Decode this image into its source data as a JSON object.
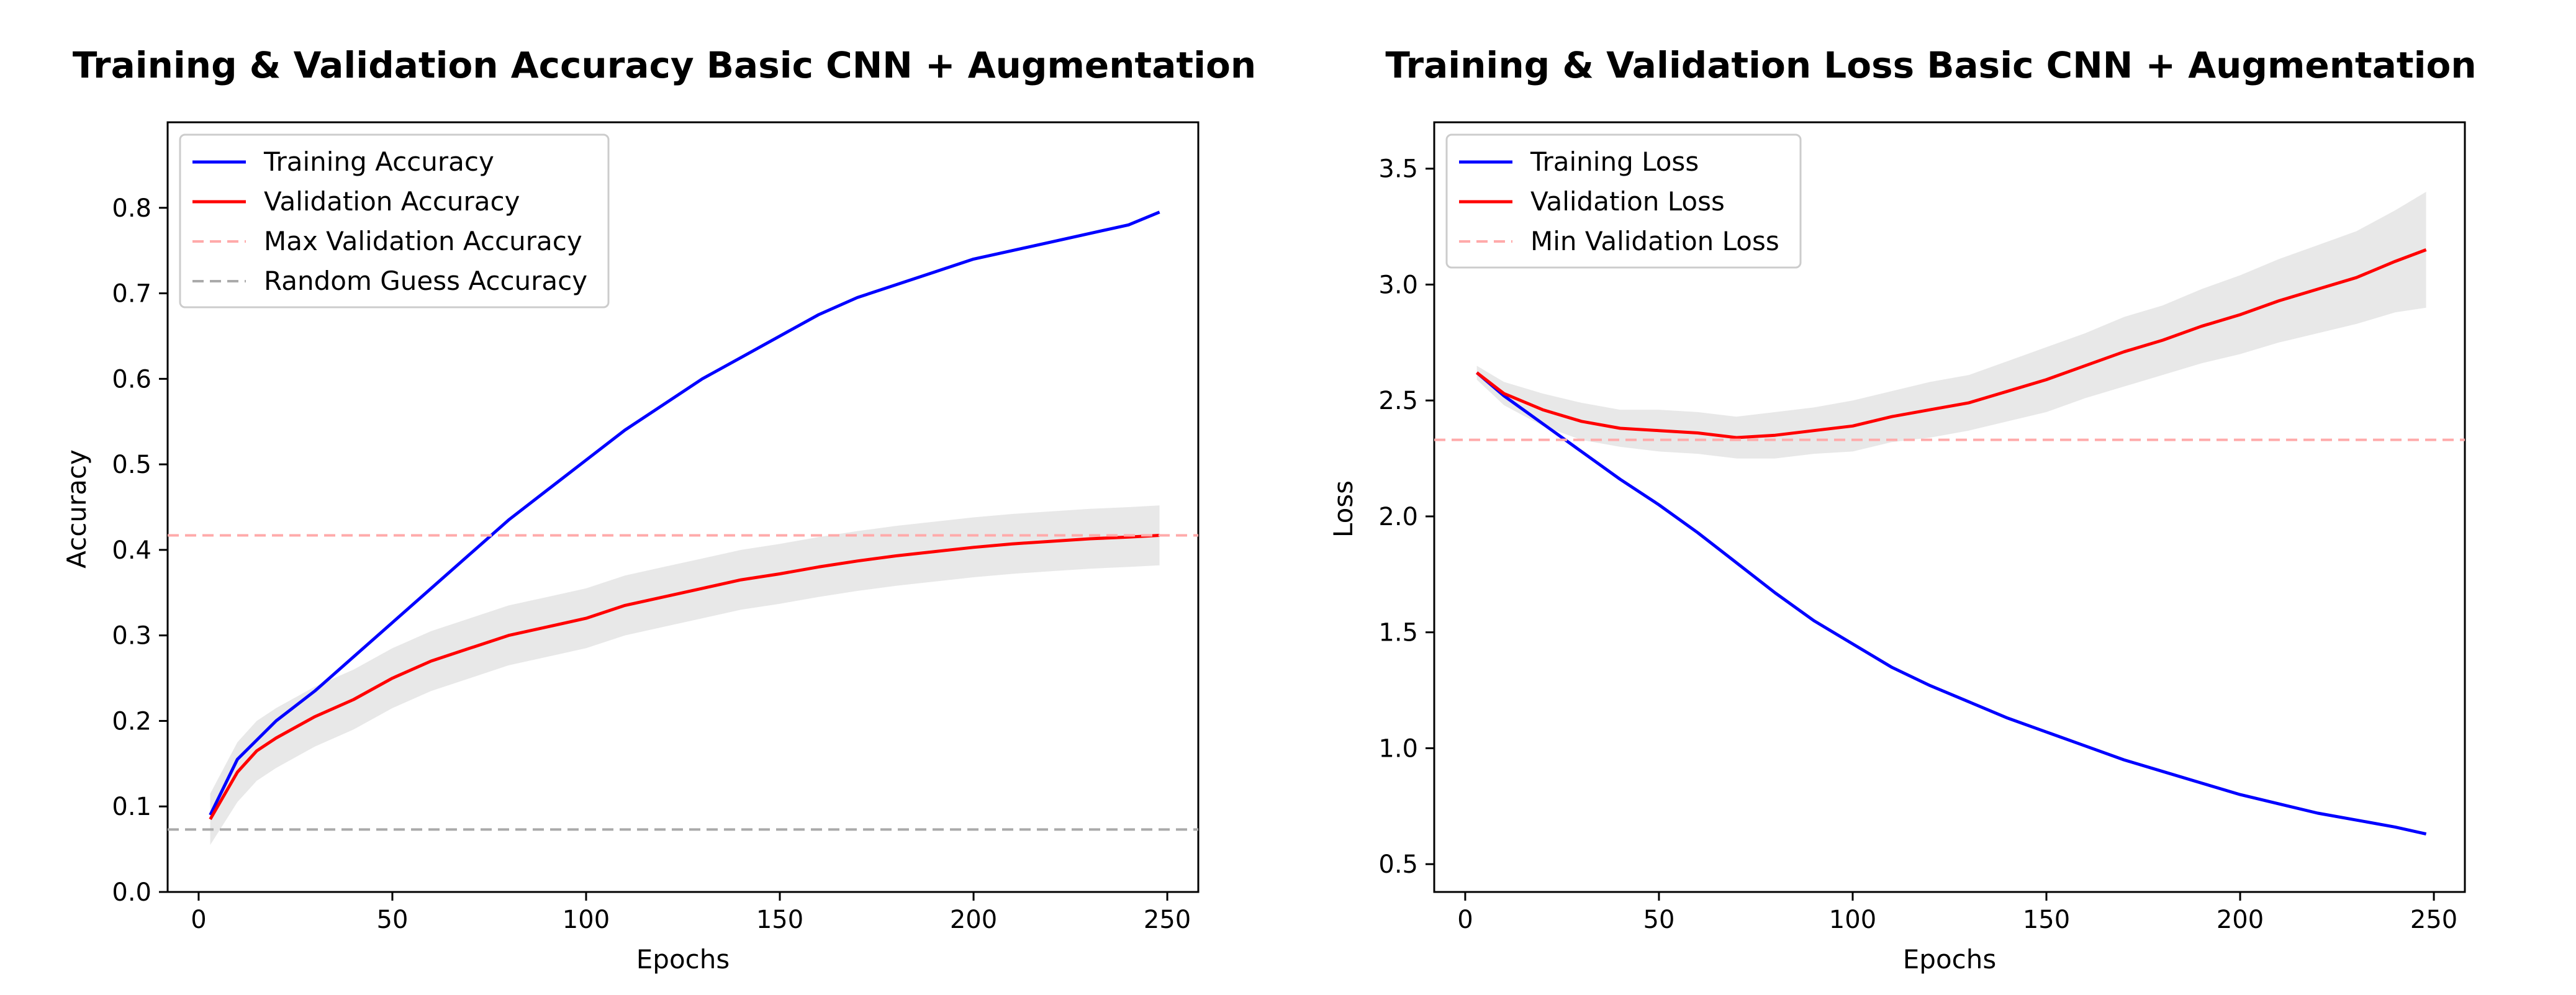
{
  "chart_data": [
    {
      "type": "line",
      "title": "Training & Validation Accuracy Basic CNN + Augmentation",
      "xlabel": "Epochs",
      "ylabel": "Accuracy",
      "xlim": [
        -8,
        258
      ],
      "ylim": [
        0.0,
        0.9
      ],
      "xticks": [
        0,
        50,
        100,
        150,
        200,
        250
      ],
      "yticks": [
        0.0,
        0.1,
        0.2,
        0.3,
        0.4,
        0.5,
        0.6,
        0.7,
        0.8
      ],
      "grid": false,
      "legend_position": "top-left",
      "series": [
        {
          "name": "Training Accuracy",
          "color": "#0000ff",
          "style": "solid",
          "x": [
            3,
            10,
            20,
            30,
            40,
            50,
            60,
            70,
            80,
            90,
            100,
            110,
            120,
            130,
            140,
            150,
            160,
            170,
            180,
            190,
            200,
            210,
            220,
            230,
            240,
            248
          ],
          "y": [
            0.09,
            0.155,
            0.2,
            0.235,
            0.275,
            0.315,
            0.355,
            0.395,
            0.435,
            0.47,
            0.505,
            0.54,
            0.57,
            0.6,
            0.625,
            0.65,
            0.675,
            0.695,
            0.71,
            0.725,
            0.74,
            0.75,
            0.76,
            0.77,
            0.78,
            0.795
          ]
        },
        {
          "name": "Validation Accuracy",
          "color": "#ff0000",
          "style": "solid",
          "band": true,
          "band_color": "#e8e8e8",
          "x": [
            3,
            10,
            15,
            20,
            30,
            40,
            50,
            60,
            70,
            80,
            90,
            100,
            110,
            120,
            130,
            140,
            150,
            160,
            170,
            180,
            190,
            200,
            210,
            220,
            230,
            240,
            248
          ],
          "y": [
            0.085,
            0.14,
            0.165,
            0.18,
            0.205,
            0.225,
            0.25,
            0.27,
            0.285,
            0.3,
            0.31,
            0.32,
            0.335,
            0.345,
            0.355,
            0.365,
            0.372,
            0.38,
            0.387,
            0.393,
            0.398,
            0.403,
            0.407,
            0.41,
            0.413,
            0.415,
            0.417
          ],
          "band_width": [
            0.03,
            0.035,
            0.035,
            0.035,
            0.035,
            0.035,
            0.035,
            0.035,
            0.035,
            0.035,
            0.035,
            0.035,
            0.035,
            0.035,
            0.035,
            0.035,
            0.035,
            0.035,
            0.035,
            0.035,
            0.035,
            0.035,
            0.035,
            0.035,
            0.035,
            0.035,
            0.035
          ]
        },
        {
          "name": "Max Validation Accuracy",
          "color": "#ffaaaa",
          "style": "dashed",
          "hline": 0.417
        },
        {
          "name": "Random Guess Accuracy",
          "color": "#aaaaaa",
          "style": "dashed",
          "hline": 0.073
        }
      ]
    },
    {
      "type": "line",
      "title": "Training & Validation Loss Basic CNN + Augmentation",
      "xlabel": "Epochs",
      "ylabel": "Loss",
      "xlim": [
        -8,
        258
      ],
      "ylim": [
        0.38,
        3.7
      ],
      "xticks": [
        0,
        50,
        100,
        150,
        200,
        250
      ],
      "yticks": [
        0.5,
        1.0,
        1.5,
        2.0,
        2.5,
        3.0,
        3.5
      ],
      "grid": false,
      "legend_position": "top-left",
      "series": [
        {
          "name": "Training Loss",
          "color": "#0000ff",
          "style": "solid",
          "x": [
            3,
            10,
            20,
            30,
            40,
            50,
            60,
            70,
            80,
            90,
            100,
            110,
            120,
            130,
            140,
            150,
            160,
            170,
            180,
            190,
            200,
            210,
            220,
            230,
            240,
            248
          ],
          "y": [
            2.62,
            2.52,
            2.4,
            2.28,
            2.16,
            2.05,
            1.93,
            1.8,
            1.67,
            1.55,
            1.45,
            1.35,
            1.27,
            1.2,
            1.13,
            1.07,
            1.01,
            0.95,
            0.9,
            0.85,
            0.8,
            0.76,
            0.72,
            0.69,
            0.66,
            0.63
          ]
        },
        {
          "name": "Validation Loss",
          "color": "#ff0000",
          "style": "solid",
          "band": true,
          "band_color": "#e8e8e8",
          "x": [
            3,
            10,
            20,
            30,
            40,
            50,
            60,
            70,
            80,
            90,
            100,
            110,
            120,
            130,
            140,
            150,
            160,
            170,
            180,
            190,
            200,
            210,
            220,
            230,
            240,
            248
          ],
          "y": [
            2.62,
            2.53,
            2.46,
            2.41,
            2.38,
            2.37,
            2.36,
            2.34,
            2.35,
            2.37,
            2.39,
            2.43,
            2.46,
            2.49,
            2.54,
            2.59,
            2.65,
            2.71,
            2.76,
            2.82,
            2.87,
            2.93,
            2.98,
            3.03,
            3.1,
            3.15
          ],
          "band_width": [
            0.03,
            0.05,
            0.07,
            0.08,
            0.08,
            0.09,
            0.09,
            0.09,
            0.1,
            0.1,
            0.11,
            0.11,
            0.12,
            0.12,
            0.13,
            0.14,
            0.14,
            0.15,
            0.15,
            0.16,
            0.17,
            0.18,
            0.19,
            0.2,
            0.22,
            0.25
          ]
        },
        {
          "name": "Min Validation Loss",
          "color": "#ffaaaa",
          "style": "dashed",
          "hline": 2.33
        }
      ]
    }
  ]
}
